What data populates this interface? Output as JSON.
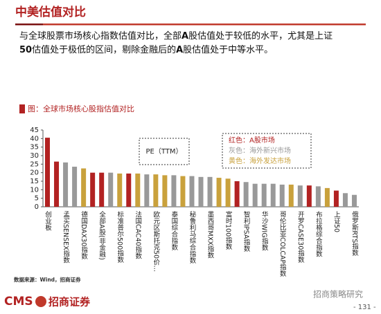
{
  "header": {
    "title": "中美估值对比"
  },
  "summary": [
    "与全球股票市场核心指数估值对比，全部",
    "A",
    "股估值处于较低的水平，尤其是上证",
    "50",
    "估值处于极低的区间，剔除金融后的",
    "A",
    "股估值处于中等水平。"
  ],
  "chart_data": {
    "type": "bar",
    "title": "图：全球市场核心股指估值对比",
    "annotation": "PE（TTM）",
    "legend_notes": [
      {
        "text": "红色：A股市场",
        "color": "#b22222"
      },
      {
        "text": "灰色：海外新兴市场",
        "color": "#999999"
      },
      {
        "text": "黄色：海外发达市场",
        "color": "#c9a13c"
      }
    ],
    "categories": [
      "创业板",
      null,
      "孟买SENSEX指数",
      null,
      "德国DAX30指数",
      null,
      "全部A股(非金融)",
      null,
      "标准普尔500指数",
      null,
      "法国CAC40指数",
      null,
      "欧元区斯托克50价…",
      null,
      "泰国综合指数",
      null,
      "秘鲁利马综合指数",
      null,
      "墨西哥MXX指数",
      null,
      "富时100指数",
      null,
      "智利IPSA指数",
      null,
      "华沙WIG指数",
      null,
      "哥伦比亚COLCAP指数",
      null,
      "开罗CASE30指数",
      null,
      "布拉格综合指数",
      null,
      "上证50",
      null,
      "俄罗斯RTS指数"
    ],
    "values": [
      40.5,
      26.5,
      26,
      23.5,
      22.5,
      20,
      20,
      20,
      19.5,
      19.5,
      19.5,
      19,
      19,
      18.5,
      18.5,
      18,
      18,
      17.5,
      17.5,
      17,
      16.5,
      15,
      14.5,
      13.5,
      13.5,
      13.5,
      13,
      13,
      12.5,
      12.5,
      12,
      11,
      9.5,
      8,
      7
    ],
    "colors": [
      "#b22222",
      "#b22222",
      "#999999",
      "#999999",
      "#c9a13c",
      "#b22222",
      "#b22222",
      "#999999",
      "#c9a13c",
      "#b22222",
      "#c9a13c",
      "#999999",
      "#c9a13c",
      "#c9a13c",
      "#999999",
      "#c9a13c",
      "#999999",
      "#999999",
      "#999999",
      "#c9a13c",
      "#c9a13c",
      "#b22222",
      "#999999",
      "#999999",
      "#999999",
      "#999999",
      "#999999",
      "#c9a13c",
      "#999999",
      "#b22222",
      "#999999",
      "#c9a13c",
      "#b22222",
      "#999999",
      "#999999"
    ],
    "ylim": [
      0,
      45
    ],
    "yticks": [
      0,
      5,
      10,
      15,
      20,
      25,
      30,
      35,
      40,
      45
    ]
  },
  "footer": {
    "source": "数据来源：Wind，招商证券",
    "logo": "CMS",
    "logo_cn": "招商证券",
    "watermark": "招商策略研究",
    "page": "- 131 -"
  }
}
